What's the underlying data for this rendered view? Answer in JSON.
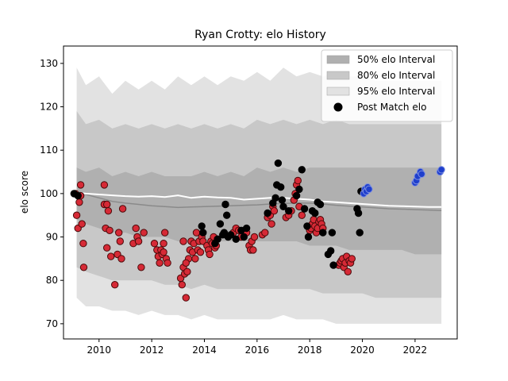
{
  "chart_data": {
    "type": "scatter",
    "title": "Ryan Crotty: elo History",
    "xlabel": "",
    "ylabel": "elo score",
    "xlim": [
      2008.65,
      2023.6
    ],
    "ylim": [
      66.5,
      134
    ],
    "x_ticks": [
      2010,
      2012,
      2014,
      2016,
      2018,
      2020,
      2022
    ],
    "y_ticks": [
      70,
      80,
      90,
      100,
      110,
      120,
      130
    ],
    "grid": false,
    "legend_position": "top-right",
    "legend": [
      {
        "label": "50% elo Interval",
        "kind": "band",
        "color": "#b0b0b0"
      },
      {
        "label": "80% elo Interval",
        "kind": "band",
        "color": "#c8c8c8"
      },
      {
        "label": "95% elo Interval",
        "kind": "band",
        "color": "#e2e2e2"
      },
      {
        "label": "Post Match elo",
        "kind": "marker",
        "color": "#000000"
      }
    ],
    "colors": {
      "band_50": "#b0b0b0",
      "band_80": "#c8c8c8",
      "band_95": "#e2e2e2",
      "mean_line": "#ffffff",
      "median_line": "#8a8a8a",
      "loss": "#d62a36",
      "win": "#000000",
      "recent": "#1f3fcc"
    },
    "bands": {
      "x": [
        2009.15,
        2009.5,
        2010.0,
        2010.5,
        2011.0,
        2011.5,
        2012.0,
        2012.5,
        2013.0,
        2013.5,
        2014.0,
        2014.5,
        2015.0,
        2015.5,
        2016.0,
        2016.5,
        2017.0,
        2017.5,
        2018.0,
        2018.5,
        2019.0,
        2019.5,
        2020.0,
        2020.5,
        2021.0,
        2021.5,
        2022.0,
        2022.5,
        2023.0
      ],
      "p95_upper": [
        129,
        125,
        127,
        123,
        126,
        124,
        126,
        124,
        127,
        125,
        127,
        125,
        127,
        126,
        128,
        126,
        129,
        127,
        128,
        127,
        128,
        127,
        127,
        126,
        126,
        126,
        126,
        126,
        126
      ],
      "p80_upper": [
        119,
        116,
        117,
        115,
        116,
        115,
        116,
        115,
        116,
        115,
        116,
        115,
        116,
        115,
        117,
        116,
        117,
        116,
        117,
        116,
        117,
        116,
        116,
        116,
        116,
        116,
        116,
        116,
        116
      ],
      "p50_upper": [
        106,
        105,
        106,
        104,
        105,
        104,
        105,
        104,
        104,
        104,
        105,
        104,
        105,
        104,
        106,
        105,
        106,
        105,
        106,
        106,
        106,
        106,
        106,
        106,
        106,
        106,
        106,
        106,
        106
      ],
      "median": [
        100.5,
        99.8,
        99.0,
        98.2,
        97.8,
        97.5,
        97.2,
        97.0,
        96.8,
        96.9,
        97.0,
        97.1,
        97.2,
        97.3,
        97.4,
        97.6,
        97.7,
        97.8,
        97.8,
        97.6,
        97.3,
        97.1,
        96.9,
        96.7,
        96.5,
        96.4,
        96.3,
        96.2,
        96.1
      ],
      "mean": [
        100.2,
        100.0,
        99.8,
        99.6,
        99.4,
        99.3,
        99.4,
        99.2,
        99.6,
        99.0,
        99.3,
        99.1,
        99.0,
        98.6,
        98.8,
        99.0,
        99.0,
        98.8,
        98.6,
        98.2,
        98.0,
        97.8,
        97.6,
        97.4,
        97.2,
        97.1,
        97.0,
        96.9,
        96.9
      ],
      "p50_lower": [
        94,
        93,
        92,
        91,
        91,
        90,
        90,
        90,
        89,
        89,
        89,
        89,
        89,
        89,
        89,
        89,
        89,
        89,
        88,
        88,
        88,
        87,
        87,
        87,
        87,
        87,
        86,
        86,
        86
      ],
      "p80_lower": [
        83,
        82,
        81,
        80,
        80,
        80,
        80,
        79,
        79,
        78,
        79,
        78,
        78,
        78,
        78,
        78,
        78,
        78,
        78,
        77,
        77,
        77,
        77,
        76,
        76,
        76,
        76,
        76,
        76
      ],
      "p95_lower": [
        76,
        74,
        74,
        73,
        73,
        72,
        73,
        72,
        72,
        71,
        72,
        71,
        71,
        71,
        71,
        71,
        72,
        71,
        71,
        71,
        70,
        70,
        70,
        70,
        70,
        70,
        70,
        70,
        70
      ]
    },
    "series": [
      {
        "name": "Post Match elo",
        "group": "loss",
        "points": [
          [
            2009.1,
            100
          ],
          [
            2009.15,
            95
          ],
          [
            2009.2,
            92
          ],
          [
            2009.25,
            98
          ],
          [
            2009.3,
            102
          ],
          [
            2009.35,
            93
          ],
          [
            2009.4,
            88.5
          ],
          [
            2009.42,
            83
          ],
          [
            2009.3,
            99.5
          ],
          [
            2010.2,
            102
          ],
          [
            2010.2,
            97.5
          ],
          [
            2010.25,
            92
          ],
          [
            2010.3,
            97.5
          ],
          [
            2010.35,
            96
          ],
          [
            2010.4,
            91.5
          ],
          [
            2010.3,
            87.5
          ],
          [
            2010.45,
            85.5
          ],
          [
            2010.6,
            79
          ],
          [
            2010.7,
            86
          ],
          [
            2010.75,
            91
          ],
          [
            2010.8,
            89
          ],
          [
            2010.85,
            85
          ],
          [
            2010.9,
            96.5
          ],
          [
            2011.3,
            88.5
          ],
          [
            2011.4,
            92
          ],
          [
            2011.45,
            90
          ],
          [
            2011.5,
            89
          ],
          [
            2011.6,
            83
          ],
          [
            2011.7,
            91
          ],
          [
            2012.1,
            88.5
          ],
          [
            2012.2,
            87
          ],
          [
            2012.25,
            85.5
          ],
          [
            2012.3,
            84
          ],
          [
            2012.35,
            87
          ],
          [
            2012.4,
            86
          ],
          [
            2012.45,
            88.5
          ],
          [
            2012.5,
            91
          ],
          [
            2012.55,
            85
          ],
          [
            2012.6,
            84
          ],
          [
            2012.45,
            86.5
          ],
          [
            2013.1,
            80.5
          ],
          [
            2013.15,
            79
          ],
          [
            2013.2,
            83
          ],
          [
            2013.25,
            81.5
          ],
          [
            2013.3,
            76
          ],
          [
            2013.35,
            82
          ],
          [
            2013.4,
            85
          ],
          [
            2013.45,
            87
          ],
          [
            2013.5,
            89
          ],
          [
            2013.55,
            86.5
          ],
          [
            2013.6,
            88.5
          ],
          [
            2013.65,
            85
          ],
          [
            2013.7,
            91
          ],
          [
            2013.75,
            87
          ],
          [
            2013.8,
            89
          ],
          [
            2013.85,
            86.5
          ],
          [
            2013.9,
            90
          ],
          [
            2013.95,
            89
          ],
          [
            2013.2,
            89
          ],
          [
            2013.3,
            84
          ],
          [
            2014.1,
            88
          ],
          [
            2014.15,
            87
          ],
          [
            2014.2,
            86
          ],
          [
            2014.25,
            89
          ],
          [
            2014.3,
            88.5
          ],
          [
            2014.35,
            90
          ],
          [
            2014.4,
            87.5
          ],
          [
            2014.45,
            88
          ],
          [
            2014.5,
            89.5
          ],
          [
            2015.1,
            91
          ],
          [
            2015.2,
            92
          ],
          [
            2015.3,
            91.5
          ],
          [
            2015.4,
            90
          ],
          [
            2015.6,
            91
          ],
          [
            2015.7,
            88
          ],
          [
            2015.75,
            87
          ],
          [
            2015.8,
            89
          ],
          [
            2015.85,
            87
          ],
          [
            2015.9,
            90
          ],
          [
            2016.2,
            90.5
          ],
          [
            2016.3,
            91
          ],
          [
            2016.4,
            94.5
          ],
          [
            2016.5,
            95
          ],
          [
            2016.55,
            93
          ],
          [
            2016.6,
            97
          ],
          [
            2016.65,
            96
          ],
          [
            2017.1,
            94.5
          ],
          [
            2017.2,
            95
          ],
          [
            2017.3,
            96
          ],
          [
            2017.4,
            98.5
          ],
          [
            2017.45,
            100
          ],
          [
            2017.5,
            102
          ],
          [
            2017.55,
            103
          ],
          [
            2017.6,
            97
          ],
          [
            2017.7,
            95
          ],
          [
            2018.0,
            91.5
          ],
          [
            2018.05,
            92
          ],
          [
            2018.1,
            93
          ],
          [
            2018.15,
            94
          ],
          [
            2018.2,
            92.5
          ],
          [
            2018.25,
            91
          ],
          [
            2018.3,
            92
          ],
          [
            2018.35,
            93.5
          ],
          [
            2018.4,
            94
          ],
          [
            2018.45,
            93
          ],
          [
            2018.5,
            92
          ],
          [
            2019.1,
            83.5
          ],
          [
            2019.15,
            84
          ],
          [
            2019.2,
            84.5
          ],
          [
            2019.25,
            85
          ],
          [
            2019.3,
            83
          ],
          [
            2019.35,
            84
          ],
          [
            2019.4,
            85.5
          ],
          [
            2019.45,
            82
          ],
          [
            2019.5,
            84.5
          ],
          [
            2019.55,
            84
          ],
          [
            2019.6,
            85
          ]
        ]
      },
      {
        "name": "Post Match elo",
        "group": "win",
        "points": [
          [
            2009.05,
            100
          ],
          [
            2009.2,
            99.5
          ],
          [
            2013.9,
            92.5
          ],
          [
            2013.95,
            91
          ],
          [
            2014.4,
            88.5
          ],
          [
            2014.5,
            89.5
          ],
          [
            2014.6,
            93
          ],
          [
            2014.7,
            90.5
          ],
          [
            2014.75,
            91
          ],
          [
            2014.8,
            97.5
          ],
          [
            2014.85,
            95
          ],
          [
            2014.9,
            90
          ],
          [
            2015.0,
            90.5
          ],
          [
            2015.2,
            89.5
          ],
          [
            2015.4,
            91.5
          ],
          [
            2015.5,
            90
          ],
          [
            2015.6,
            92
          ],
          [
            2016.4,
            95.5
          ],
          [
            2016.6,
            97.8
          ],
          [
            2016.7,
            99
          ],
          [
            2016.75,
            102
          ],
          [
            2016.8,
            107
          ],
          [
            2016.9,
            101.5
          ],
          [
            2016.95,
            98.5
          ],
          [
            2017.0,
            97
          ],
          [
            2017.2,
            96
          ],
          [
            2017.5,
            99.5
          ],
          [
            2017.6,
            101
          ],
          [
            2017.7,
            105.5
          ],
          [
            2017.8,
            96.5
          ],
          [
            2017.9,
            92.5
          ],
          [
            2017.95,
            90
          ],
          [
            2018.1,
            96
          ],
          [
            2018.2,
            95.5
          ],
          [
            2018.3,
            98
          ],
          [
            2018.4,
            97.5
          ],
          [
            2018.5,
            91
          ],
          [
            2018.7,
            86
          ],
          [
            2018.8,
            86.8
          ],
          [
            2018.85,
            91
          ],
          [
            2018.9,
            83.5
          ],
          [
            2019.8,
            96.5
          ],
          [
            2019.85,
            95.5
          ],
          [
            2019.9,
            91
          ],
          [
            2019.95,
            100.5
          ]
        ]
      },
      {
        "name": "Post Match elo",
        "group": "recent",
        "points": [
          [
            2020.05,
            100
          ],
          [
            2020.1,
            101
          ],
          [
            2020.15,
            100.5
          ],
          [
            2020.2,
            101.5
          ],
          [
            2020.25,
            101
          ],
          [
            2022.0,
            102.5
          ],
          [
            2022.05,
            103
          ],
          [
            2022.1,
            104
          ],
          [
            2022.2,
            105
          ],
          [
            2022.25,
            104.5
          ],
          [
            2022.95,
            105
          ],
          [
            2023.0,
            105.5
          ]
        ]
      }
    ]
  }
}
